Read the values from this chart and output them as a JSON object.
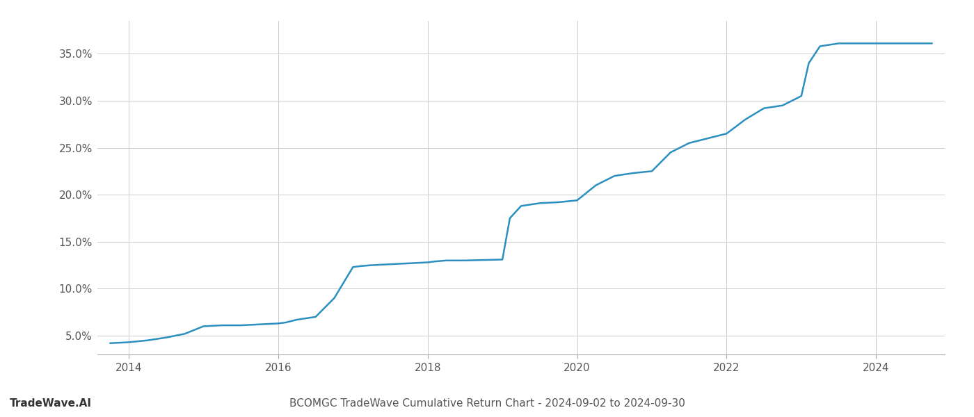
{
  "title": "BCOMGC TradeWave Cumulative Return Chart - 2024-09-02 to 2024-09-30",
  "watermark": "TradeWave.AI",
  "line_color": "#2b8fbf",
  "line_width": 1.8,
  "background_color": "#ffffff",
  "grid_color": "#cccccc",
  "x_years": [
    2013.75,
    2014.0,
    2014.25,
    2014.5,
    2014.75,
    2015.0,
    2015.25,
    2015.5,
    2015.75,
    2016.0,
    2016.1,
    2016.25,
    2016.5,
    2016.75,
    2017.0,
    2017.1,
    2017.25,
    2017.5,
    2017.75,
    2018.0,
    2018.1,
    2018.25,
    2018.5,
    2018.75,
    2019.0,
    2019.1,
    2019.25,
    2019.5,
    2019.75,
    2020.0,
    2020.25,
    2020.5,
    2020.75,
    2021.0,
    2021.25,
    2021.5,
    2021.75,
    2022.0,
    2022.25,
    2022.5,
    2022.75,
    2023.0,
    2023.1,
    2023.25,
    2023.5,
    2023.75,
    2024.0,
    2024.25,
    2024.5,
    2024.75
  ],
  "y_values": [
    4.2,
    4.3,
    4.5,
    4.8,
    5.2,
    6.0,
    6.1,
    6.1,
    6.2,
    6.3,
    6.4,
    6.7,
    7.0,
    9.0,
    12.3,
    12.4,
    12.5,
    12.6,
    12.7,
    12.8,
    12.9,
    13.0,
    13.0,
    13.05,
    13.1,
    17.5,
    18.8,
    19.1,
    19.2,
    19.4,
    21.0,
    22.0,
    22.3,
    22.5,
    24.5,
    25.5,
    26.0,
    26.5,
    28.0,
    29.2,
    29.5,
    30.5,
    34.0,
    35.8,
    36.1,
    36.1,
    36.1,
    36.1,
    36.1,
    36.1
  ],
  "xlim": [
    2013.58,
    2024.92
  ],
  "ylim": [
    3.0,
    38.5
  ],
  "yticks": [
    5.0,
    10.0,
    15.0,
    20.0,
    25.0,
    30.0,
    35.0
  ],
  "ytick_labels": [
    "5.0%",
    "10.0%",
    "15.0%",
    "20.0%",
    "25.0%",
    "30.0%",
    "35.0%"
  ],
  "xticks": [
    2014,
    2016,
    2018,
    2020,
    2022,
    2024
  ],
  "xtick_labels": [
    "2014",
    "2016",
    "2018",
    "2020",
    "2022",
    "2024"
  ],
  "title_fontsize": 11,
  "watermark_fontsize": 11,
  "tick_fontsize": 11
}
